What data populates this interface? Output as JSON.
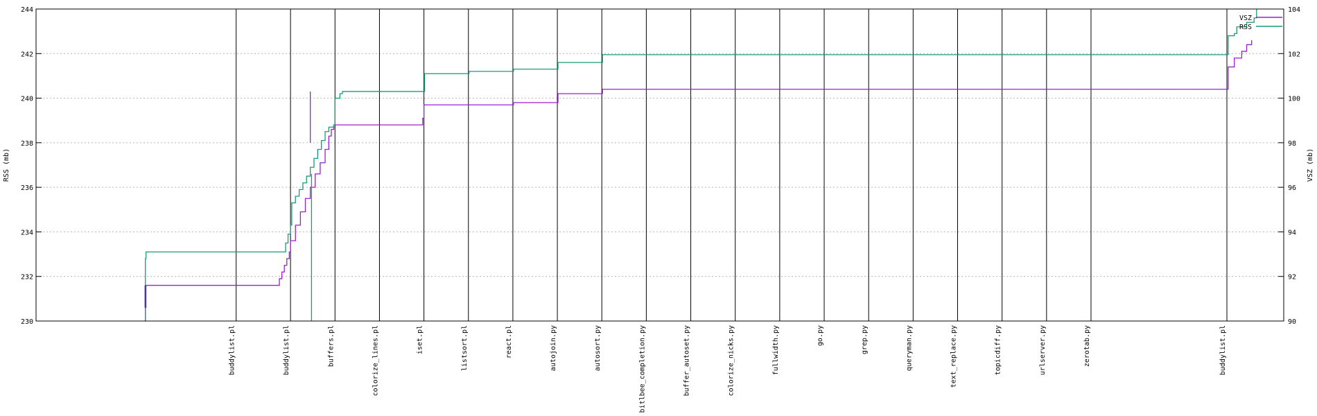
{
  "chart_data": {
    "type": "line",
    "ylabel_left": "RSS (mb)",
    "ylabel_right": "VSZ (mb)",
    "ylim_left": [
      230,
      244
    ],
    "ylim_right": [
      90,
      104
    ],
    "xlim": [
      0,
      1010
    ],
    "yticks_left": [
      230,
      232,
      234,
      236,
      238,
      240,
      242,
      244
    ],
    "yticks_right": [
      90,
      92,
      94,
      96,
      98,
      100,
      102,
      104
    ],
    "grid": "horizontal dotted",
    "legend_position": "top-right",
    "colors": {
      "rss": "#1a9a77",
      "vsz": "#9c1fcf",
      "marker": "#000000"
    },
    "events": [
      {
        "x": 162,
        "label": "buddylist.pl"
      },
      {
        "x": 206,
        "label": "buddylist.pl"
      },
      {
        "x": 242,
        "label": "buffers.pl"
      },
      {
        "x": 278,
        "label": "colorize_lines.pl"
      },
      {
        "x": 314,
        "label": "iset.pl"
      },
      {
        "x": 350,
        "label": "listsort.pl"
      },
      {
        "x": 386,
        "label": "react.pl"
      },
      {
        "x": 422,
        "label": "autojoin.py"
      },
      {
        "x": 458,
        "label": "autosort.py"
      },
      {
        "x": 494,
        "label": "bitlbee_completion.py"
      },
      {
        "x": 530,
        "label": "buffer_autoset.py"
      },
      {
        "x": 566,
        "label": "colorize_nicks.py"
      },
      {
        "x": 602,
        "label": "fullwidth.py"
      },
      {
        "x": 638,
        "label": "go.py"
      },
      {
        "x": 674,
        "label": "grep.py"
      },
      {
        "x": 710,
        "label": "queryman.py"
      },
      {
        "x": 746,
        "label": "text_replace.py"
      },
      {
        "x": 782,
        "label": "topicdiff.py"
      },
      {
        "x": 818,
        "label": "urlserver.py"
      },
      {
        "x": 854,
        "label": "zerotab.py"
      },
      {
        "x": 964,
        "label": "buddylist.pl"
      }
    ],
    "series": [
      {
        "name": "VSZ",
        "axis": "right",
        "points": [
          [
            88,
            90
          ],
          [
            88.5,
            90.6
          ],
          [
            89,
            91.6
          ],
          [
            90,
            91.6
          ],
          [
            195,
            91.6
          ],
          [
            197,
            91.9
          ],
          [
            199,
            92.2
          ],
          [
            201,
            92.5
          ],
          [
            203,
            92.8
          ],
          [
            205,
            93.1
          ],
          [
            206,
            93.6
          ],
          [
            210,
            94.3
          ],
          [
            214,
            94.9
          ],
          [
            218,
            95.5
          ],
          [
            222,
            96.0
          ],
          [
            226,
            96.6
          ],
          [
            230,
            97.1
          ],
          [
            234,
            97.7
          ],
          [
            237,
            98.3
          ],
          [
            239,
            98.6
          ],
          [
            241,
            98.8
          ],
          [
            242,
            98.8
          ],
          [
            312,
            98.8
          ],
          [
            313,
            99.1
          ],
          [
            314,
            99.7
          ],
          [
            386,
            99.7
          ],
          [
            386.5,
            99.8
          ],
          [
            422,
            99.8
          ],
          [
            422.5,
            100.2
          ],
          [
            458,
            100.2
          ],
          [
            458.5,
            100.4
          ],
          [
            964,
            100.4
          ],
          [
            965,
            101.4
          ],
          [
            970,
            101.8
          ],
          [
            976,
            102.1
          ],
          [
            980,
            102.4
          ],
          [
            984,
            102.6
          ]
        ],
        "spike": {
          "x": 222,
          "value": 100.3
        }
      },
      {
        "name": "RSS",
        "axis": "left",
        "points": [
          [
            88,
            230
          ],
          [
            88.5,
            232.8
          ],
          [
            89,
            233.1
          ],
          [
            90,
            233.1
          ],
          [
            200,
            233.1
          ],
          [
            202,
            233.5
          ],
          [
            204,
            233.9
          ],
          [
            206,
            234.3
          ],
          [
            207,
            235.3
          ],
          [
            210,
            235.6
          ],
          [
            213,
            235.9
          ],
          [
            216,
            236.2
          ],
          [
            219,
            236.5
          ],
          [
            222,
            236.9
          ],
          [
            225,
            237.3
          ],
          [
            228,
            237.7
          ],
          [
            231,
            238.1
          ],
          [
            234,
            238.5
          ],
          [
            237,
            238.7
          ],
          [
            241,
            238.8
          ],
          [
            242,
            240.0
          ],
          [
            246,
            240.2
          ],
          [
            248,
            240.3
          ],
          [
            314,
            240.3
          ],
          [
            314.5,
            241.1
          ],
          [
            350,
            241.1
          ],
          [
            350.5,
            241.2
          ],
          [
            386,
            241.2
          ],
          [
            386.5,
            241.3
          ],
          [
            422,
            241.3
          ],
          [
            422.5,
            241.6
          ],
          [
            458,
            241.6
          ],
          [
            458.5,
            241.95
          ],
          [
            964,
            241.95
          ],
          [
            965,
            242.8
          ],
          [
            970,
            242.9
          ],
          [
            972,
            243.2
          ],
          [
            980,
            243.4
          ],
          [
            986,
            243.6
          ],
          [
            988,
            244
          ]
        ],
        "spike": {
          "x": 223,
          "value": 230
        }
      }
    ]
  }
}
